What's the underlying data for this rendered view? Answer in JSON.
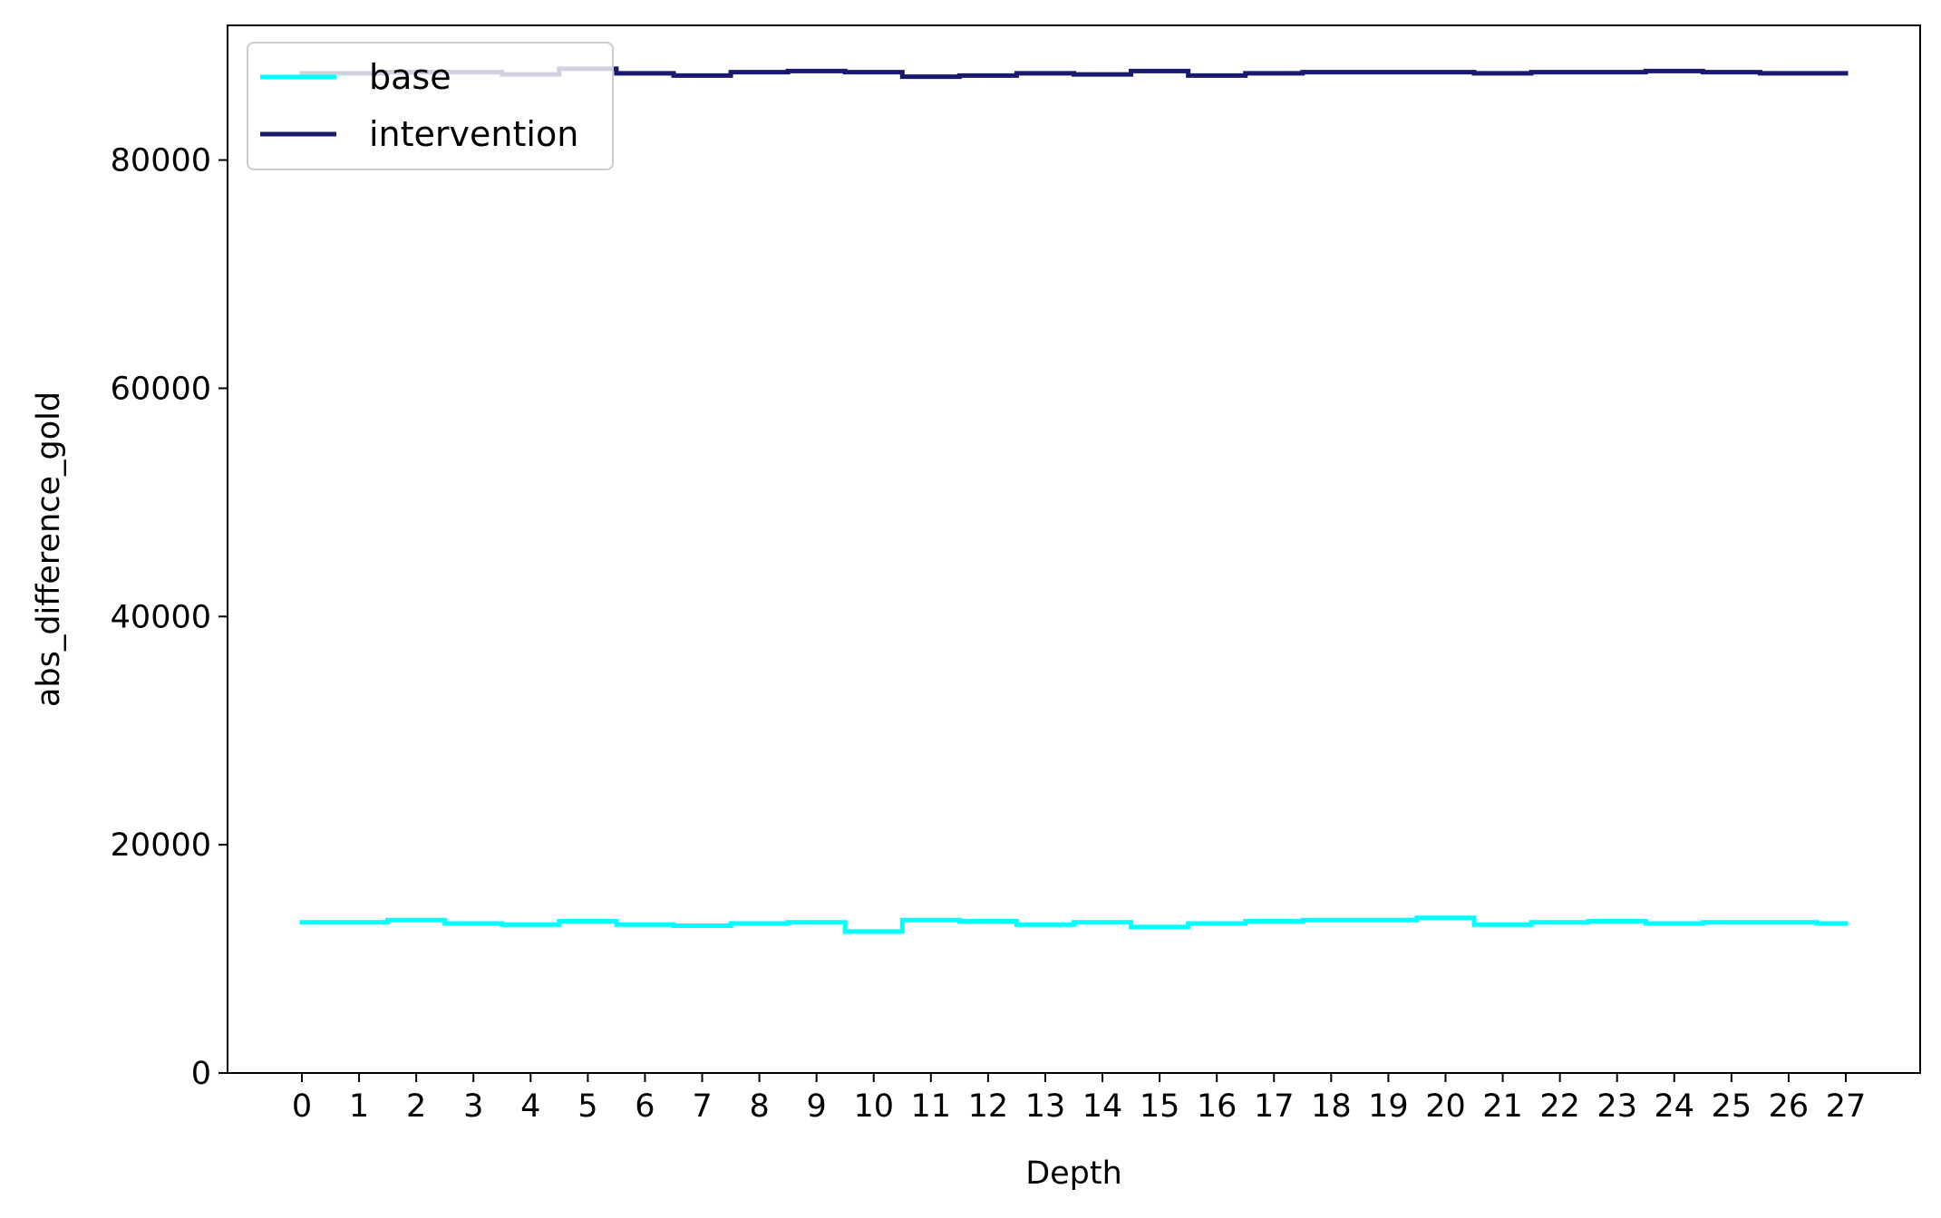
{
  "chart_data": {
    "type": "line",
    "drawstyle": "steps-mid",
    "title": "",
    "xlabel": "Depth",
    "ylabel": "abs_difference_gold",
    "x": [
      0,
      1,
      2,
      3,
      4,
      5,
      6,
      7,
      8,
      9,
      10,
      11,
      12,
      13,
      14,
      15,
      16,
      17,
      18,
      19,
      20,
      21,
      22,
      23,
      24,
      25,
      26,
      27
    ],
    "xticks": [
      "0",
      "1",
      "2",
      "3",
      "4",
      "5",
      "6",
      "7",
      "8",
      "9",
      "10",
      "11",
      "12",
      "13",
      "14",
      "15",
      "16",
      "17",
      "18",
      "19",
      "20",
      "21",
      "22",
      "23",
      "24",
      "25",
      "26",
      "27"
    ],
    "yticks": [
      "0",
      "20000",
      "40000",
      "60000",
      "80000"
    ],
    "xlim": [
      -1.3,
      28.3
    ],
    "ylim": [
      0,
      91800
    ],
    "grid": false,
    "legend_position": "upper left",
    "series": [
      {
        "name": "base",
        "color": "#00ffff",
        "values": [
          13200,
          13200,
          13400,
          13100,
          13000,
          13300,
          13000,
          12900,
          13100,
          13200,
          12400,
          13400,
          13300,
          13000,
          13200,
          12800,
          13100,
          13300,
          13400,
          13400,
          13600,
          13000,
          13200,
          13300,
          13100,
          13200,
          13200,
          13100
        ]
      },
      {
        "name": "intervention",
        "color": "#191970",
        "values": [
          87600,
          87600,
          87700,
          87700,
          87500,
          88000,
          87600,
          87400,
          87700,
          87800,
          87700,
          87300,
          87400,
          87600,
          87500,
          87800,
          87400,
          87600,
          87700,
          87700,
          87700,
          87600,
          87700,
          87700,
          87800,
          87700,
          87600,
          87600
        ]
      }
    ]
  }
}
